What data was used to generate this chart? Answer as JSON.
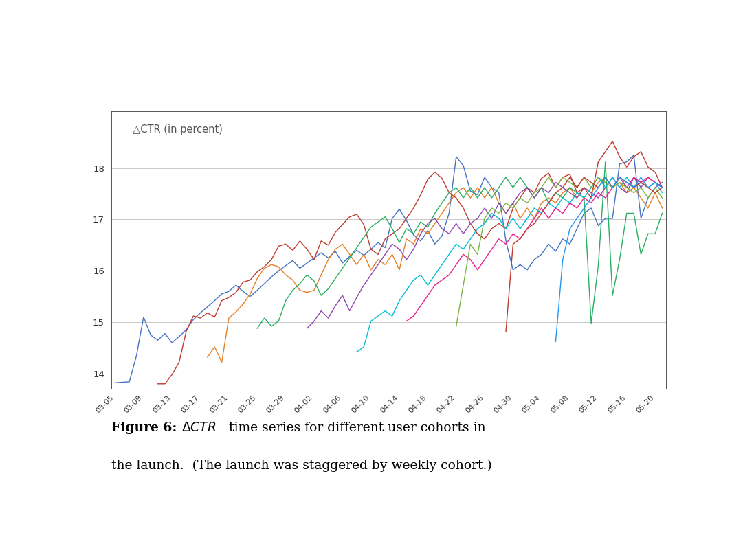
{
  "title": "△CTR (in percent)",
  "ylim": [
    13.7,
    19.1
  ],
  "yticks": [
    14,
    15,
    16,
    17,
    18
  ],
  "x_labels": [
    "03-05",
    "03-09",
    "03-13",
    "03-17",
    "03-21",
    "03-25",
    "03-29",
    "04-02",
    "04-06",
    "04-10",
    "04-14",
    "04-18",
    "04-22",
    "04-26",
    "04-30",
    "05-04",
    "05-08",
    "05-12",
    "05-16",
    "05-20"
  ],
  "tick_positions": [
    0,
    4,
    8,
    12,
    16,
    20,
    24,
    28,
    32,
    36,
    40,
    44,
    48,
    52,
    56,
    60,
    64,
    68,
    72,
    76
  ],
  "xlim": [
    -0.5,
    77.5
  ],
  "background_color": "#ffffff",
  "plot_bg": "#ffffff",
  "grid_color": "#c8c8c8",
  "spine_color": "#555555",
  "cohorts": [
    {
      "color": "#4472c4",
      "start_idx": 0,
      "values": [
        13.82,
        13.83,
        13.84,
        14.35,
        15.1,
        14.75,
        14.65,
        14.78,
        14.6,
        14.72,
        14.85,
        15.05,
        15.18,
        15.3,
        15.42,
        15.55,
        15.6,
        15.72,
        15.6,
        15.5,
        15.62,
        15.75,
        15.88,
        16.0,
        16.1,
        16.2,
        16.05,
        16.15,
        16.25,
        16.35,
        16.25,
        16.38,
        16.15,
        16.28,
        16.4,
        16.3,
        16.42,
        16.55,
        16.45,
        17.02,
        17.2,
        16.98,
        16.7,
        16.58,
        16.78,
        16.52,
        16.68,
        17.12,
        18.22,
        18.05,
        17.55,
        17.48,
        17.82,
        17.62,
        17.52,
        16.58,
        16.02,
        16.12,
        16.02,
        16.22,
        16.32,
        16.52,
        16.38,
        16.62,
        16.52,
        16.82,
        17.12,
        17.22,
        16.88,
        17.02,
        17.02,
        18.08,
        18.12,
        18.25,
        17.02,
        17.42,
        17.62,
        17.72
      ]
    },
    {
      "color": "#c0392b",
      "start_idx": 6,
      "values": [
        13.8,
        13.8,
        13.98,
        14.22,
        14.82,
        15.12,
        15.08,
        15.18,
        15.1,
        15.42,
        15.48,
        15.58,
        15.78,
        15.82,
        15.98,
        16.08,
        16.22,
        16.48,
        16.52,
        16.4,
        16.58,
        16.42,
        16.22,
        16.58,
        16.5,
        16.75,
        16.9,
        17.05,
        17.1,
        16.9,
        16.42,
        16.32,
        16.62,
        16.72,
        16.82,
        17.02,
        17.22,
        17.48,
        17.78,
        17.92,
        17.8,
        17.52,
        17.42,
        17.22,
        16.92,
        16.72,
        16.62,
        16.82,
        16.92,
        16.82,
        17.22,
        17.42,
        17.62,
        17.52,
        17.8,
        17.9,
        17.62,
        17.82,
        17.88,
        17.52,
        17.62,
        17.42,
        18.12,
        18.32,
        18.52,
        18.22,
        18.02,
        18.22,
        18.32,
        18.02,
        17.92,
        17.62
      ]
    },
    {
      "color": "#e67e22",
      "start_idx": 13,
      "values": [
        14.32,
        14.52,
        14.22,
        15.08,
        15.2,
        15.35,
        15.55,
        15.85,
        16.05,
        16.12,
        16.08,
        15.92,
        15.82,
        15.62,
        15.58,
        15.62,
        15.92,
        16.22,
        16.42,
        16.52,
        16.32,
        16.12,
        16.32,
        16.02,
        16.22,
        16.12,
        16.32,
        16.02,
        16.62,
        16.52,
        16.82,
        16.72,
        16.92,
        17.12,
        17.32,
        17.52,
        17.62,
        17.42,
        17.62,
        17.42,
        17.62,
        17.32,
        17.12,
        17.32,
        17.02,
        17.22,
        17.02,
        17.32,
        17.42,
        17.32,
        17.52,
        17.62,
        17.42,
        17.62,
        17.52,
        17.72,
        17.82,
        17.62,
        17.72,
        17.52,
        17.62,
        17.42,
        17.22,
        17.52,
        17.22
      ]
    },
    {
      "color": "#27ae60",
      "start_idx": 20,
      "values": [
        14.88,
        15.08,
        14.92,
        15.02,
        15.42,
        15.62,
        15.75,
        15.92,
        15.8,
        15.52,
        15.65,
        15.85,
        16.05,
        16.25,
        16.45,
        16.65,
        16.85,
        16.95,
        17.05,
        16.82,
        16.55,
        16.82,
        16.72,
        16.95,
        16.85,
        17.12,
        17.32,
        17.52,
        17.62,
        17.42,
        17.62,
        17.42,
        17.62,
        17.42,
        17.62,
        17.82,
        17.62,
        17.82,
        17.62,
        17.42,
        17.62,
        17.32,
        17.52,
        17.42,
        17.62,
        17.52,
        17.42,
        14.98,
        16.1,
        18.12,
        15.52,
        16.22,
        17.12,
        17.12,
        16.32,
        16.72,
        16.72,
        17.12
      ]
    },
    {
      "color": "#8e44ad",
      "start_idx": 27,
      "values": [
        14.88,
        15.02,
        15.22,
        15.08,
        15.32,
        15.52,
        15.22,
        15.48,
        15.72,
        15.92,
        16.12,
        16.32,
        16.52,
        16.42,
        16.22,
        16.42,
        16.72,
        16.92,
        17.02,
        16.82,
        16.72,
        16.92,
        16.72,
        16.92,
        17.02,
        17.22,
        17.02,
        17.32,
        17.12,
        17.32,
        17.52,
        17.62,
        17.42,
        17.62,
        17.52,
        17.72,
        17.62,
        17.52,
        17.42,
        17.62,
        17.52,
        17.42,
        17.62,
        17.82,
        17.62,
        17.52,
        17.82,
        17.62,
        17.82,
        17.72,
        17.62
      ]
    },
    {
      "color": "#00bcd4",
      "start_idx": 34,
      "values": [
        14.42,
        14.52,
        15.02,
        15.12,
        15.22,
        15.12,
        15.42,
        15.62,
        15.82,
        15.92,
        15.72,
        15.92,
        16.12,
        16.32,
        16.52,
        16.42,
        16.62,
        16.82,
        16.92,
        17.12,
        17.02,
        16.82,
        17.02,
        16.82,
        17.02,
        17.22,
        17.12,
        17.32,
        17.22,
        17.42,
        17.32,
        17.52,
        17.42,
        17.62,
        17.82,
        17.62,
        17.82,
        17.62,
        17.82,
        17.62,
        17.72,
        17.62,
        17.72,
        17.52
      ]
    },
    {
      "color": "#e91e8c",
      "start_idx": 41,
      "values": [
        15.02,
        15.12,
        15.32,
        15.52,
        15.72,
        15.82,
        15.92,
        16.12,
        16.32,
        16.22,
        16.02,
        16.22,
        16.42,
        16.62,
        16.52,
        16.72,
        16.62,
        16.82,
        17.02,
        17.22,
        17.02,
        17.22,
        17.12,
        17.32,
        17.22,
        17.42,
        17.32,
        17.52,
        17.42,
        17.62,
        17.82,
        17.62,
        17.82,
        17.72,
        17.82,
        17.72,
        17.62
      ]
    },
    {
      "color": "#7cb342",
      "start_idx": 48,
      "values": [
        14.92,
        15.72,
        16.52,
        16.32,
        17.02,
        17.22,
        17.12,
        17.32,
        17.22,
        17.42,
        17.32,
        17.52,
        17.62,
        17.82,
        17.62,
        17.82,
        17.72,
        17.62,
        17.82,
        17.62,
        17.82,
        17.72,
        17.62,
        17.72,
        17.62,
        17.52,
        17.62,
        17.42,
        17.62,
        17.42
      ]
    },
    {
      "color": "#c0392b",
      "start_idx": 55,
      "values": [
        14.82,
        16.52,
        16.62,
        16.82,
        16.92,
        17.12,
        17.32,
        17.52,
        17.62,
        17.82,
        17.62,
        17.82,
        17.72,
        17.62,
        17.82,
        17.62,
        17.82,
        17.72,
        17.62,
        17.72,
        17.62,
        17.52,
        17.62
      ]
    },
    {
      "color": "#2196f3",
      "start_idx": 62,
      "values": [
        14.62,
        16.22,
        16.82,
        17.02,
        17.22,
        17.42,
        17.62,
        17.82,
        17.62,
        17.82,
        17.72,
        17.62,
        17.82,
        17.62,
        17.72,
        17.62
      ]
    }
  ]
}
